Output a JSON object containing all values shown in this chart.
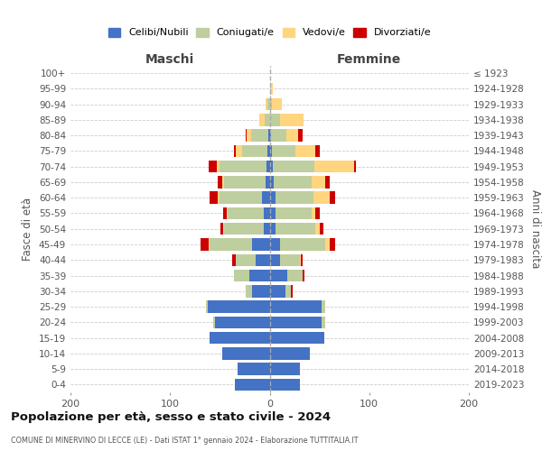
{
  "age_groups": [
    "0-4",
    "5-9",
    "10-14",
    "15-19",
    "20-24",
    "25-29",
    "30-34",
    "35-39",
    "40-44",
    "45-49",
    "50-54",
    "55-59",
    "60-64",
    "65-69",
    "70-74",
    "75-79",
    "80-84",
    "85-89",
    "90-94",
    "95-99",
    "100+"
  ],
  "birth_years": [
    "2019-2023",
    "2014-2018",
    "2009-2013",
    "2004-2008",
    "1999-2003",
    "1994-1998",
    "1989-1993",
    "1984-1988",
    "1979-1983",
    "1974-1978",
    "1969-1973",
    "1964-1968",
    "1959-1963",
    "1954-1958",
    "1949-1953",
    "1944-1948",
    "1939-1943",
    "1934-1938",
    "1929-1933",
    "1924-1928",
    "≤ 1923"
  ],
  "males": {
    "celibi": [
      35,
      32,
      48,
      60,
      55,
      62,
      18,
      20,
      14,
      18,
      6,
      6,
      8,
      4,
      3,
      2,
      1,
      0,
      0,
      0,
      0
    ],
    "coniugati": [
      0,
      0,
      0,
      0,
      2,
      2,
      6,
      16,
      20,
      42,
      40,
      36,
      42,
      42,
      47,
      26,
      18,
      5,
      2,
      0,
      0
    ],
    "vedovi": [
      0,
      0,
      0,
      0,
      0,
      0,
      0,
      0,
      0,
      1,
      1,
      1,
      2,
      2,
      3,
      6,
      4,
      5,
      2,
      0,
      0
    ],
    "divorziati": [
      0,
      0,
      0,
      0,
      0,
      0,
      0,
      0,
      4,
      8,
      2,
      4,
      8,
      4,
      8,
      2,
      1,
      0,
      0,
      0,
      0
    ]
  },
  "females": {
    "nubili": [
      30,
      30,
      40,
      55,
      52,
      52,
      16,
      18,
      10,
      10,
      6,
      6,
      6,
      4,
      3,
      2,
      1,
      0,
      0,
      0,
      0
    ],
    "coniugate": [
      0,
      0,
      0,
      0,
      4,
      4,
      5,
      15,
      20,
      46,
      40,
      36,
      38,
      38,
      42,
      24,
      16,
      10,
      2,
      1,
      0
    ],
    "vedove": [
      0,
      0,
      0,
      0,
      0,
      0,
      0,
      0,
      1,
      4,
      4,
      4,
      16,
      14,
      40,
      20,
      12,
      24,
      10,
      2,
      0
    ],
    "divorziate": [
      0,
      0,
      0,
      0,
      0,
      0,
      2,
      2,
      2,
      6,
      4,
      4,
      6,
      4,
      2,
      4,
      4,
      0,
      0,
      0,
      0
    ]
  },
  "colors": {
    "celibi": "#4472C4",
    "coniugati": "#BFCE9E",
    "vedovi": "#FFD580",
    "divorziati": "#CC0000"
  },
  "legend_labels": [
    "Celibi/Nubili",
    "Coniugati/e",
    "Vedovi/e",
    "Divorziati/e"
  ],
  "title": "Popolazione per età, sesso e stato civile - 2024",
  "subtitle": "COMUNE DI MINERVINO DI LECCE (LE) - Dati ISTAT 1° gennaio 2024 - Elaborazione TUTTITALIA.IT",
  "xlabel_left": "Maschi",
  "xlabel_right": "Femmine",
  "ylabel_left": "Fasce di età",
  "ylabel_right": "Anni di nascita",
  "xlim": 200,
  "bar_bg_color": "#ffffff",
  "grid_color": "#cccccc"
}
